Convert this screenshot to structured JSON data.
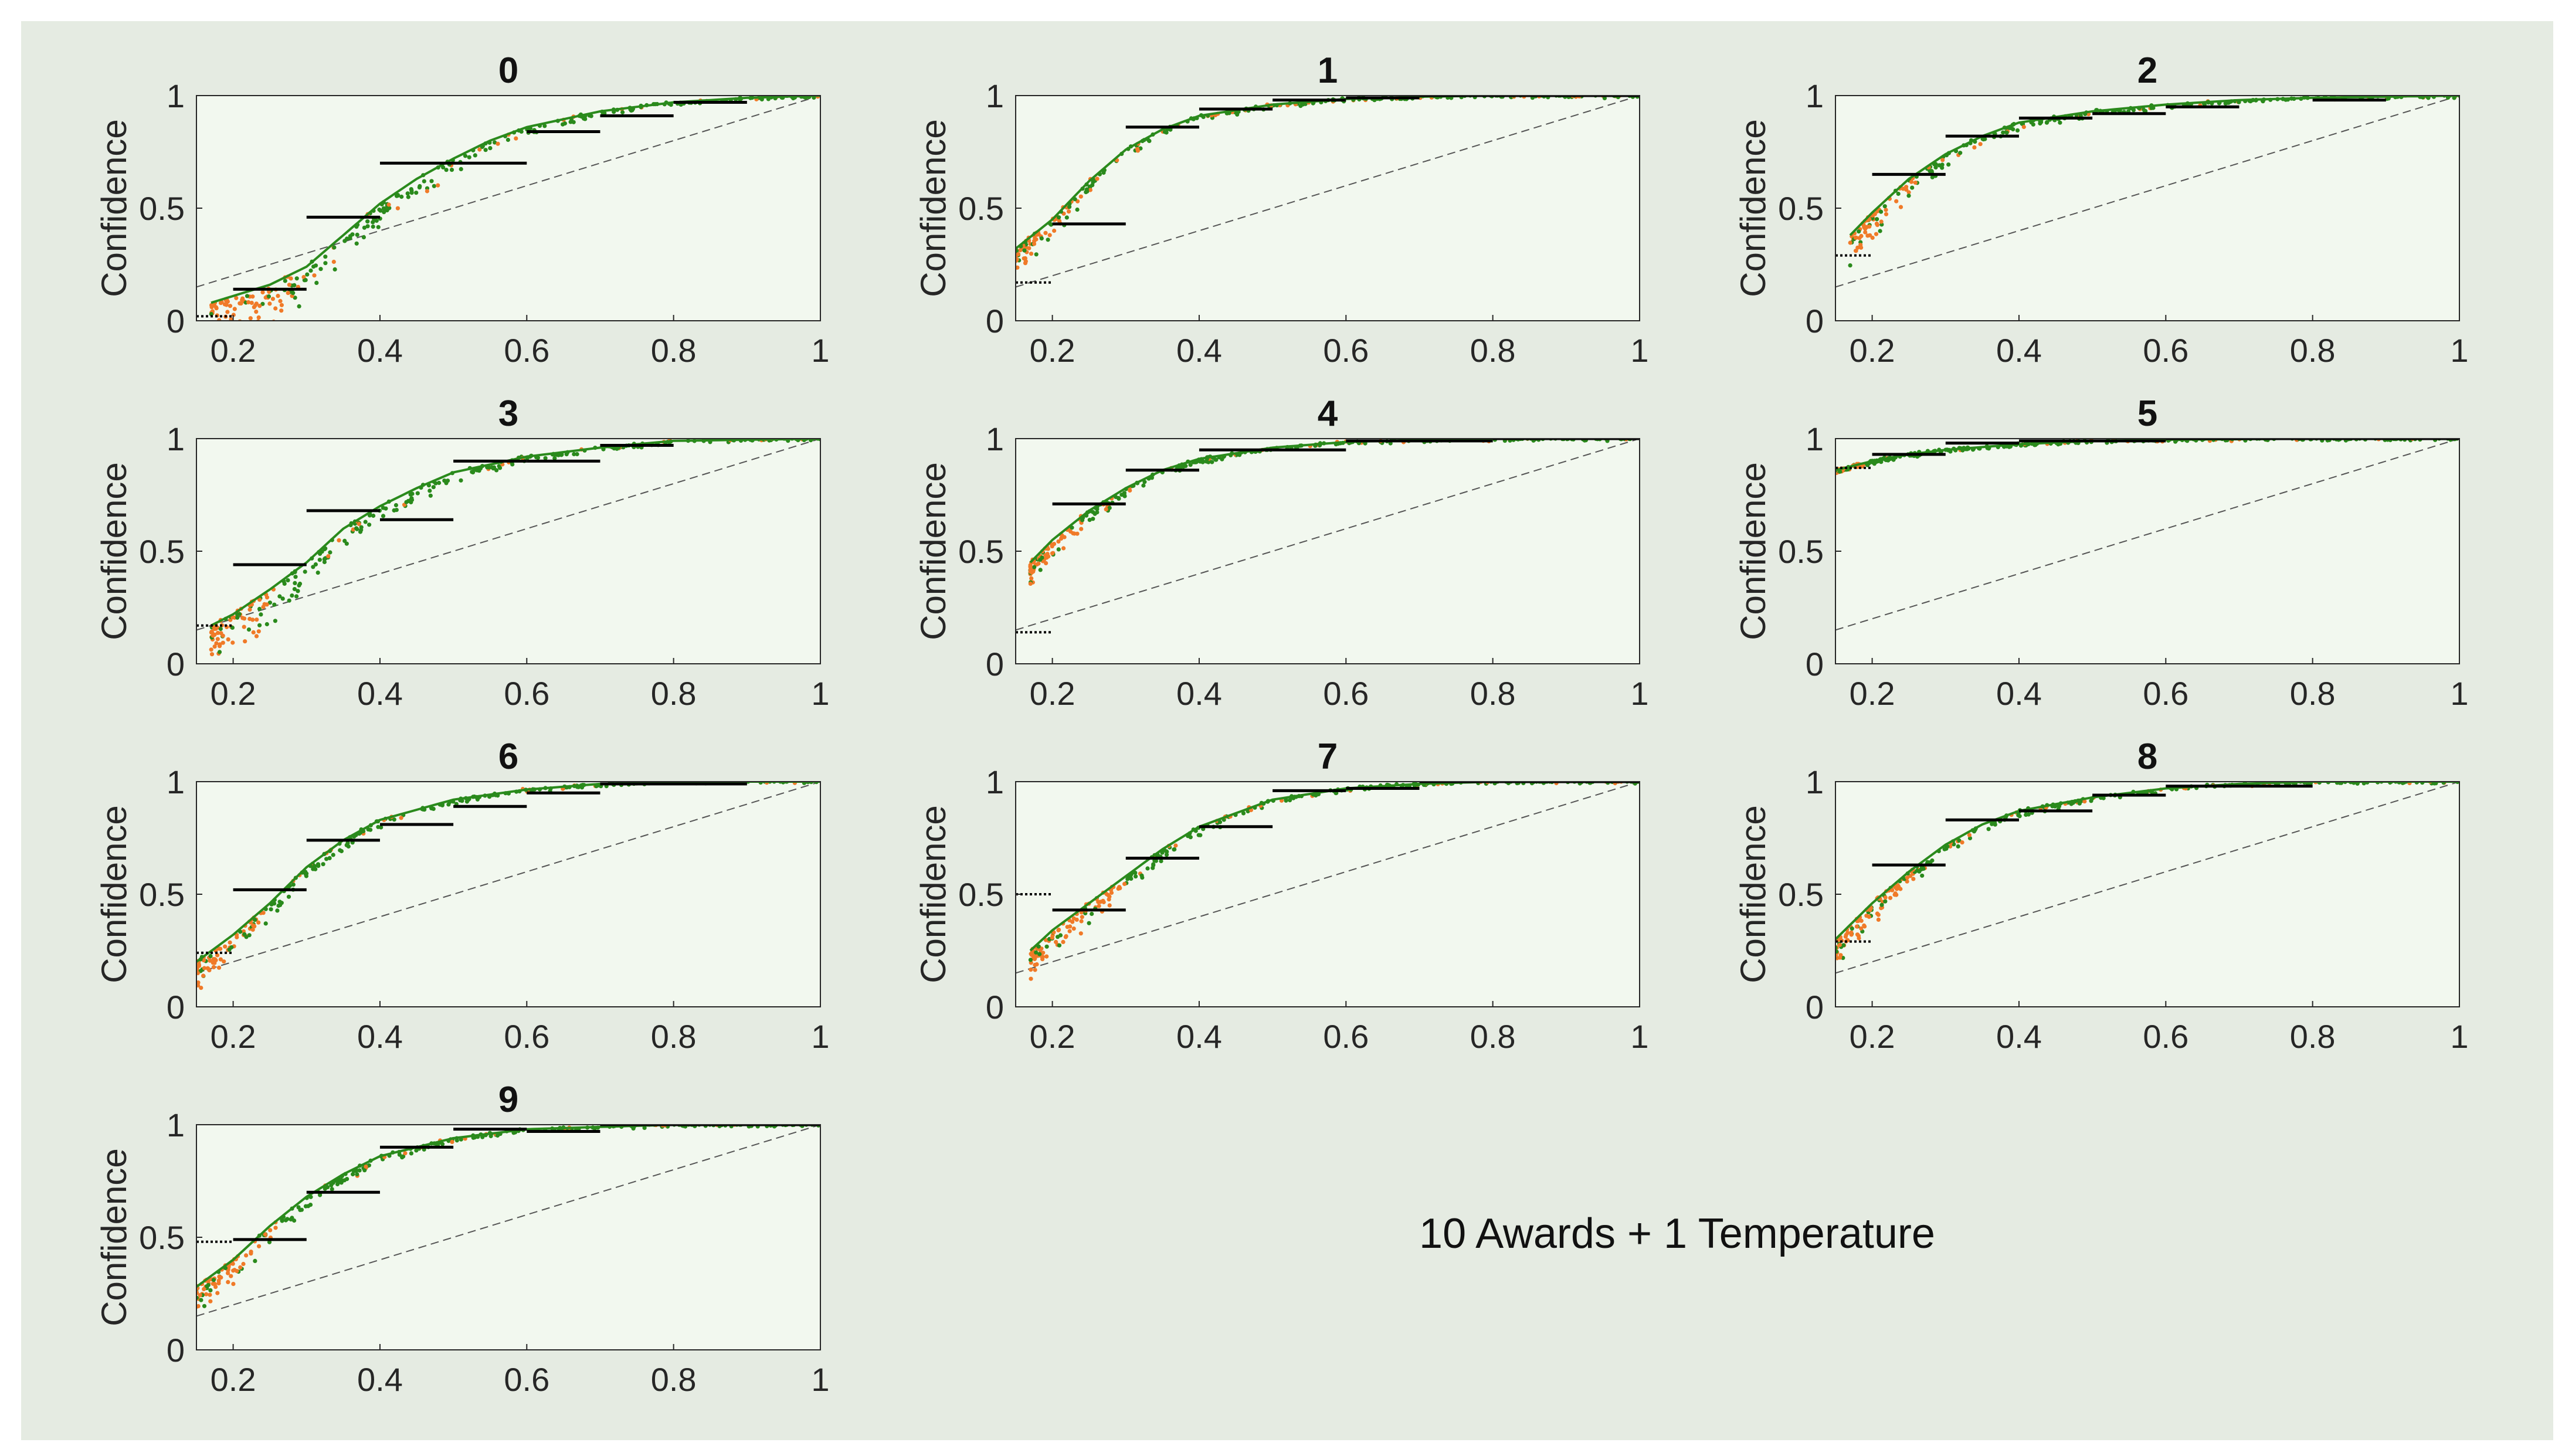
{
  "figure": {
    "caption": "10 Awards + 1 Temperature",
    "background_color": "#e5ebe2",
    "plot_background_color": "#f2f8ef",
    "colors": {
      "green": "#2a8a1c",
      "orange": "#f07a28",
      "bin": "#000000",
      "diagonal": "#555555"
    }
  },
  "chart_data": [
    {
      "type": "scatter",
      "title": "0",
      "ylabel": "Confidence",
      "xlim": [
        0.15,
        1
      ],
      "ylim": [
        0,
        1
      ],
      "xticks": [
        "0.2",
        "0.4",
        "0.6",
        "0.8",
        "1"
      ],
      "yticks": [
        "0",
        "0.5",
        "1"
      ],
      "diagonal": {
        "x": [
          0.15,
          1
        ],
        "y": [
          0.15,
          1
        ]
      },
      "prior": {
        "x": [
          0.15,
          0.2
        ],
        "y": 0.02
      },
      "bins": [
        {
          "x": [
            0.2,
            0.3
          ],
          "y": 0.14
        },
        {
          "x": [
            0.3,
            0.4
          ],
          "y": 0.46
        },
        {
          "x": [
            0.4,
            0.6
          ],
          "y": 0.7
        },
        {
          "x": [
            0.6,
            0.7
          ],
          "y": 0.84
        },
        {
          "x": [
            0.7,
            0.8
          ],
          "y": 0.91
        },
        {
          "x": [
            0.8,
            0.9
          ],
          "y": 0.97
        }
      ],
      "trend": {
        "x": [
          0.17,
          0.2,
          0.25,
          0.3,
          0.35,
          0.4,
          0.45,
          0.5,
          0.55,
          0.6,
          0.7,
          0.8,
          0.9,
          1.0
        ],
        "y": [
          0.08,
          0.11,
          0.16,
          0.24,
          0.38,
          0.52,
          0.63,
          0.72,
          0.8,
          0.86,
          0.93,
          0.97,
          0.99,
          1.0
        ]
      },
      "spread": 0.08,
      "green_from": 0.28
    },
    {
      "type": "scatter",
      "title": "1",
      "ylabel": "Confidence",
      "xlim": [
        0.15,
        1
      ],
      "ylim": [
        0,
        1
      ],
      "xticks": [
        "0.2",
        "0.4",
        "0.6",
        "0.8",
        "1"
      ],
      "yticks": [
        "0",
        "0.5",
        "1"
      ],
      "diagonal": {
        "x": [
          0.15,
          1
        ],
        "y": [
          0.15,
          1
        ]
      },
      "prior": {
        "x": [
          0.15,
          0.2
        ],
        "y": 0.17
      },
      "bins": [
        {
          "x": [
            0.2,
            0.3
          ],
          "y": 0.43
        },
        {
          "x": [
            0.3,
            0.4
          ],
          "y": 0.86
        },
        {
          "x": [
            0.4,
            0.5
          ],
          "y": 0.94
        },
        {
          "x": [
            0.5,
            0.6
          ],
          "y": 0.98
        },
        {
          "x": [
            0.6,
            0.7
          ],
          "y": 0.99
        },
        {
          "x": [
            0.7,
            0.9
          ],
          "y": 1.0
        },
        {
          "x": [
            0.9,
            1.0
          ],
          "y": 1.0
        }
      ],
      "trend": {
        "x": [
          0.15,
          0.2,
          0.25,
          0.3,
          0.35,
          0.4,
          0.5,
          0.6,
          0.7,
          0.8,
          1.0
        ],
        "y": [
          0.32,
          0.45,
          0.62,
          0.76,
          0.85,
          0.91,
          0.96,
          0.985,
          0.995,
          1.0,
          1.0
        ]
      },
      "spread": 0.05,
      "green_from": 0.24
    },
    {
      "type": "scatter",
      "title": "2",
      "ylabel": "Confidence",
      "xlim": [
        0.15,
        1
      ],
      "ylim": [
        0,
        1
      ],
      "xticks": [
        "0.2",
        "0.4",
        "0.6",
        "0.8",
        "1"
      ],
      "yticks": [
        "0",
        "0.5",
        "1"
      ],
      "diagonal": {
        "x": [
          0.15,
          1
        ],
        "y": [
          0.15,
          1
        ]
      },
      "prior": {
        "x": [
          0.15,
          0.2
        ],
        "y": 0.29
      },
      "bins": [
        {
          "x": [
            0.2,
            0.3
          ],
          "y": 0.65
        },
        {
          "x": [
            0.3,
            0.4
          ],
          "y": 0.82
        },
        {
          "x": [
            0.4,
            0.5
          ],
          "y": 0.9
        },
        {
          "x": [
            0.5,
            0.6
          ],
          "y": 0.92
        },
        {
          "x": [
            0.6,
            0.7
          ],
          "y": 0.95
        },
        {
          "x": [
            0.8,
            0.9
          ],
          "y": 0.98
        }
      ],
      "trend": {
        "x": [
          0.17,
          0.2,
          0.25,
          0.3,
          0.35,
          0.4,
          0.5,
          0.6,
          0.7,
          0.8,
          1.0
        ],
        "y": [
          0.38,
          0.48,
          0.63,
          0.74,
          0.82,
          0.88,
          0.93,
          0.96,
          0.98,
          0.99,
          1.0
        ]
      },
      "spread": 0.08,
      "green_from": 0.26
    },
    {
      "type": "scatter",
      "title": "3",
      "ylabel": "Confidence",
      "xlim": [
        0.15,
        1
      ],
      "ylim": [
        0,
        1
      ],
      "xticks": [
        "0.2",
        "0.4",
        "0.6",
        "0.8",
        "1"
      ],
      "yticks": [
        "0",
        "0.5",
        "1"
      ],
      "diagonal": {
        "x": [
          0.15,
          1
        ],
        "y": [
          0.15,
          1
        ]
      },
      "prior": {
        "x": [
          0.15,
          0.2
        ],
        "y": 0.17
      },
      "bins": [
        {
          "x": [
            0.2,
            0.3
          ],
          "y": 0.44
        },
        {
          "x": [
            0.3,
            0.4
          ],
          "y": 0.68
        },
        {
          "x": [
            0.4,
            0.5
          ],
          "y": 0.64
        },
        {
          "x": [
            0.5,
            0.6
          ],
          "y": 0.9
        },
        {
          "x": [
            0.6,
            0.7
          ],
          "y": 0.9
        },
        {
          "x": [
            0.7,
            0.8
          ],
          "y": 0.97
        }
      ],
      "trend": {
        "x": [
          0.17,
          0.2,
          0.25,
          0.3,
          0.35,
          0.4,
          0.45,
          0.5,
          0.6,
          0.7,
          0.8,
          1.0
        ],
        "y": [
          0.17,
          0.22,
          0.33,
          0.45,
          0.6,
          0.7,
          0.78,
          0.85,
          0.92,
          0.96,
          0.99,
          1.0
        ]
      },
      "spread": 0.08,
      "green_from": 0.26
    },
    {
      "type": "scatter",
      "title": "4",
      "ylabel": "Confidence",
      "xlim": [
        0.15,
        1
      ],
      "ylim": [
        0,
        1
      ],
      "xticks": [
        "0.2",
        "0.4",
        "0.6",
        "0.8",
        "1"
      ],
      "yticks": [
        "0",
        "0.5",
        "1"
      ],
      "diagonal": {
        "x": [
          0.15,
          1
        ],
        "y": [
          0.15,
          1
        ]
      },
      "prior": {
        "x": [
          0.15,
          0.2
        ],
        "y": 0.14
      },
      "bins": [
        {
          "x": [
            0.2,
            0.3
          ],
          "y": 0.71
        },
        {
          "x": [
            0.3,
            0.4
          ],
          "y": 0.86
        },
        {
          "x": [
            0.4,
            0.5
          ],
          "y": 0.95
        },
        {
          "x": [
            0.5,
            0.6
          ],
          "y": 0.95
        },
        {
          "x": [
            0.6,
            0.8
          ],
          "y": 0.99
        },
        {
          "x": [
            0.8,
            1.0
          ],
          "y": 1.0
        }
      ],
      "trend": {
        "x": [
          0.17,
          0.2,
          0.25,
          0.3,
          0.35,
          0.4,
          0.5,
          0.6,
          0.7,
          0.8,
          1.0
        ],
        "y": [
          0.45,
          0.55,
          0.68,
          0.78,
          0.86,
          0.91,
          0.96,
          0.985,
          0.995,
          1.0,
          1.0
        ]
      },
      "spread": 0.06,
      "green_from": 0.24
    },
    {
      "type": "scatter",
      "title": "5",
      "ylabel": "Confidence",
      "xlim": [
        0.15,
        1
      ],
      "ylim": [
        0,
        1
      ],
      "xticks": [
        "0.2",
        "0.4",
        "0.6",
        "0.8",
        "1"
      ],
      "yticks": [
        "0",
        "0.5",
        "1"
      ],
      "diagonal": {
        "x": [
          0.15,
          1
        ],
        "y": [
          0.15,
          1
        ]
      },
      "prior": {
        "x": [
          0.15,
          0.2
        ],
        "y": 0.87
      },
      "bins": [
        {
          "x": [
            0.2,
            0.3
          ],
          "y": 0.93
        },
        {
          "x": [
            0.3,
            0.4
          ],
          "y": 0.98
        },
        {
          "x": [
            0.4,
            0.6
          ],
          "y": 0.99
        },
        {
          "x": [
            0.6,
            0.8
          ],
          "y": 1.0
        },
        {
          "x": [
            0.8,
            1.0
          ],
          "y": 1.0
        }
      ],
      "trend": {
        "x": [
          0.15,
          0.2,
          0.25,
          0.3,
          0.4,
          0.5,
          0.6,
          0.8,
          1.0
        ],
        "y": [
          0.86,
          0.9,
          0.93,
          0.95,
          0.975,
          0.99,
          0.995,
          1.0,
          1.0
        ]
      },
      "spread": 0.02,
      "green_from": 0.19
    },
    {
      "type": "scatter",
      "title": "6",
      "ylabel": "Confidence",
      "xlim": [
        0.15,
        1
      ],
      "ylim": [
        0,
        1
      ],
      "xticks": [
        "0.2",
        "0.4",
        "0.6",
        "0.8",
        "1"
      ],
      "yticks": [
        "0",
        "0.5",
        "1"
      ],
      "diagonal": {
        "x": [
          0.15,
          1
        ],
        "y": [
          0.15,
          1
        ]
      },
      "prior": {
        "x": [
          0.15,
          0.2
        ],
        "y": 0.24
      },
      "bins": [
        {
          "x": [
            0.2,
            0.3
          ],
          "y": 0.52
        },
        {
          "x": [
            0.3,
            0.4
          ],
          "y": 0.74
        },
        {
          "x": [
            0.4,
            0.5
          ],
          "y": 0.81
        },
        {
          "x": [
            0.5,
            0.6
          ],
          "y": 0.89
        },
        {
          "x": [
            0.6,
            0.7
          ],
          "y": 0.95
        },
        {
          "x": [
            0.7,
            0.9
          ],
          "y": 0.99
        }
      ],
      "trend": {
        "x": [
          0.15,
          0.2,
          0.25,
          0.3,
          0.35,
          0.4,
          0.5,
          0.6,
          0.7,
          0.8,
          1.0
        ],
        "y": [
          0.2,
          0.32,
          0.46,
          0.62,
          0.74,
          0.83,
          0.92,
          0.965,
          0.99,
          1.0,
          1.0
        ]
      },
      "spread": 0.05,
      "green_from": 0.24
    },
    {
      "type": "scatter",
      "title": "7",
      "ylabel": "Confidence",
      "xlim": [
        0.15,
        1
      ],
      "ylim": [
        0,
        1
      ],
      "xticks": [
        "0.2",
        "0.4",
        "0.6",
        "0.8",
        "1"
      ],
      "yticks": [
        "0",
        "0.5",
        "1"
      ],
      "diagonal": {
        "x": [
          0.15,
          1
        ],
        "y": [
          0.15,
          1
        ]
      },
      "prior": {
        "x": [
          0.15,
          0.2
        ],
        "y": 0.5
      },
      "bins": [
        {
          "x": [
            0.2,
            0.3
          ],
          "y": 0.43
        },
        {
          "x": [
            0.3,
            0.4
          ],
          "y": 0.66
        },
        {
          "x": [
            0.4,
            0.5
          ],
          "y": 0.8
        },
        {
          "x": [
            0.5,
            0.6
          ],
          "y": 0.96
        },
        {
          "x": [
            0.6,
            0.7
          ],
          "y": 0.97
        },
        {
          "x": [
            0.7,
            0.8
          ],
          "y": 1.0
        },
        {
          "x": [
            0.8,
            1.0
          ],
          "y": 1.0
        }
      ],
      "trend": {
        "x": [
          0.17,
          0.2,
          0.25,
          0.3,
          0.35,
          0.4,
          0.5,
          0.6,
          0.7,
          0.8,
          1.0
        ],
        "y": [
          0.25,
          0.34,
          0.46,
          0.58,
          0.7,
          0.8,
          0.92,
          0.97,
          0.99,
          1.0,
          1.0
        ]
      },
      "spread": 0.06,
      "green_from": 0.3
    },
    {
      "type": "scatter",
      "title": "8",
      "ylabel": "Confidence",
      "xlim": [
        0.15,
        1
      ],
      "ylim": [
        0,
        1
      ],
      "xticks": [
        "0.2",
        "0.4",
        "0.6",
        "0.8",
        "1"
      ],
      "yticks": [
        "0",
        "0.5",
        "1"
      ],
      "diagonal": {
        "x": [
          0.15,
          1
        ],
        "y": [
          0.15,
          1
        ]
      },
      "prior": {
        "x": [
          0.15,
          0.2
        ],
        "y": 0.29
      },
      "bins": [
        {
          "x": [
            0.2,
            0.3
          ],
          "y": 0.63
        },
        {
          "x": [
            0.3,
            0.4
          ],
          "y": 0.83
        },
        {
          "x": [
            0.4,
            0.5
          ],
          "y": 0.87
        },
        {
          "x": [
            0.5,
            0.6
          ],
          "y": 0.94
        },
        {
          "x": [
            0.6,
            0.7
          ],
          "y": 0.98
        },
        {
          "x": [
            0.7,
            0.8
          ],
          "y": 0.98
        }
      ],
      "trend": {
        "x": [
          0.15,
          0.2,
          0.25,
          0.3,
          0.35,
          0.4,
          0.5,
          0.6,
          0.7,
          0.8,
          1.0
        ],
        "y": [
          0.3,
          0.46,
          0.6,
          0.72,
          0.81,
          0.87,
          0.93,
          0.97,
          0.99,
          1.0,
          1.0
        ]
      },
      "spread": 0.06,
      "green_from": 0.26
    },
    {
      "type": "scatter",
      "title": "9",
      "ylabel": "Confidence",
      "xlim": [
        0.15,
        1
      ],
      "ylim": [
        0,
        1
      ],
      "xticks": [
        "0.2",
        "0.4",
        "0.6",
        "0.8",
        "1"
      ],
      "yticks": [
        "0",
        "0.5",
        "1"
      ],
      "diagonal": {
        "x": [
          0.15,
          1
        ],
        "y": [
          0.15,
          1
        ]
      },
      "prior": {
        "x": [
          0.15,
          0.2
        ],
        "y": 0.48
      },
      "bins": [
        {
          "x": [
            0.2,
            0.3
          ],
          "y": 0.49
        },
        {
          "x": [
            0.3,
            0.4
          ],
          "y": 0.7
        },
        {
          "x": [
            0.4,
            0.5
          ],
          "y": 0.9
        },
        {
          "x": [
            0.5,
            0.6
          ],
          "y": 0.98
        },
        {
          "x": [
            0.6,
            0.7
          ],
          "y": 0.97
        },
        {
          "x": [
            0.7,
            1.0
          ],
          "y": 1.0
        }
      ],
      "trend": {
        "x": [
          0.15,
          0.2,
          0.25,
          0.3,
          0.35,
          0.4,
          0.5,
          0.6,
          0.7,
          0.8,
          1.0
        ],
        "y": [
          0.28,
          0.4,
          0.55,
          0.68,
          0.78,
          0.86,
          0.94,
          0.98,
          0.99,
          1.0,
          1.0
        ]
      },
      "spread": 0.06,
      "green_from": 0.26
    }
  ]
}
